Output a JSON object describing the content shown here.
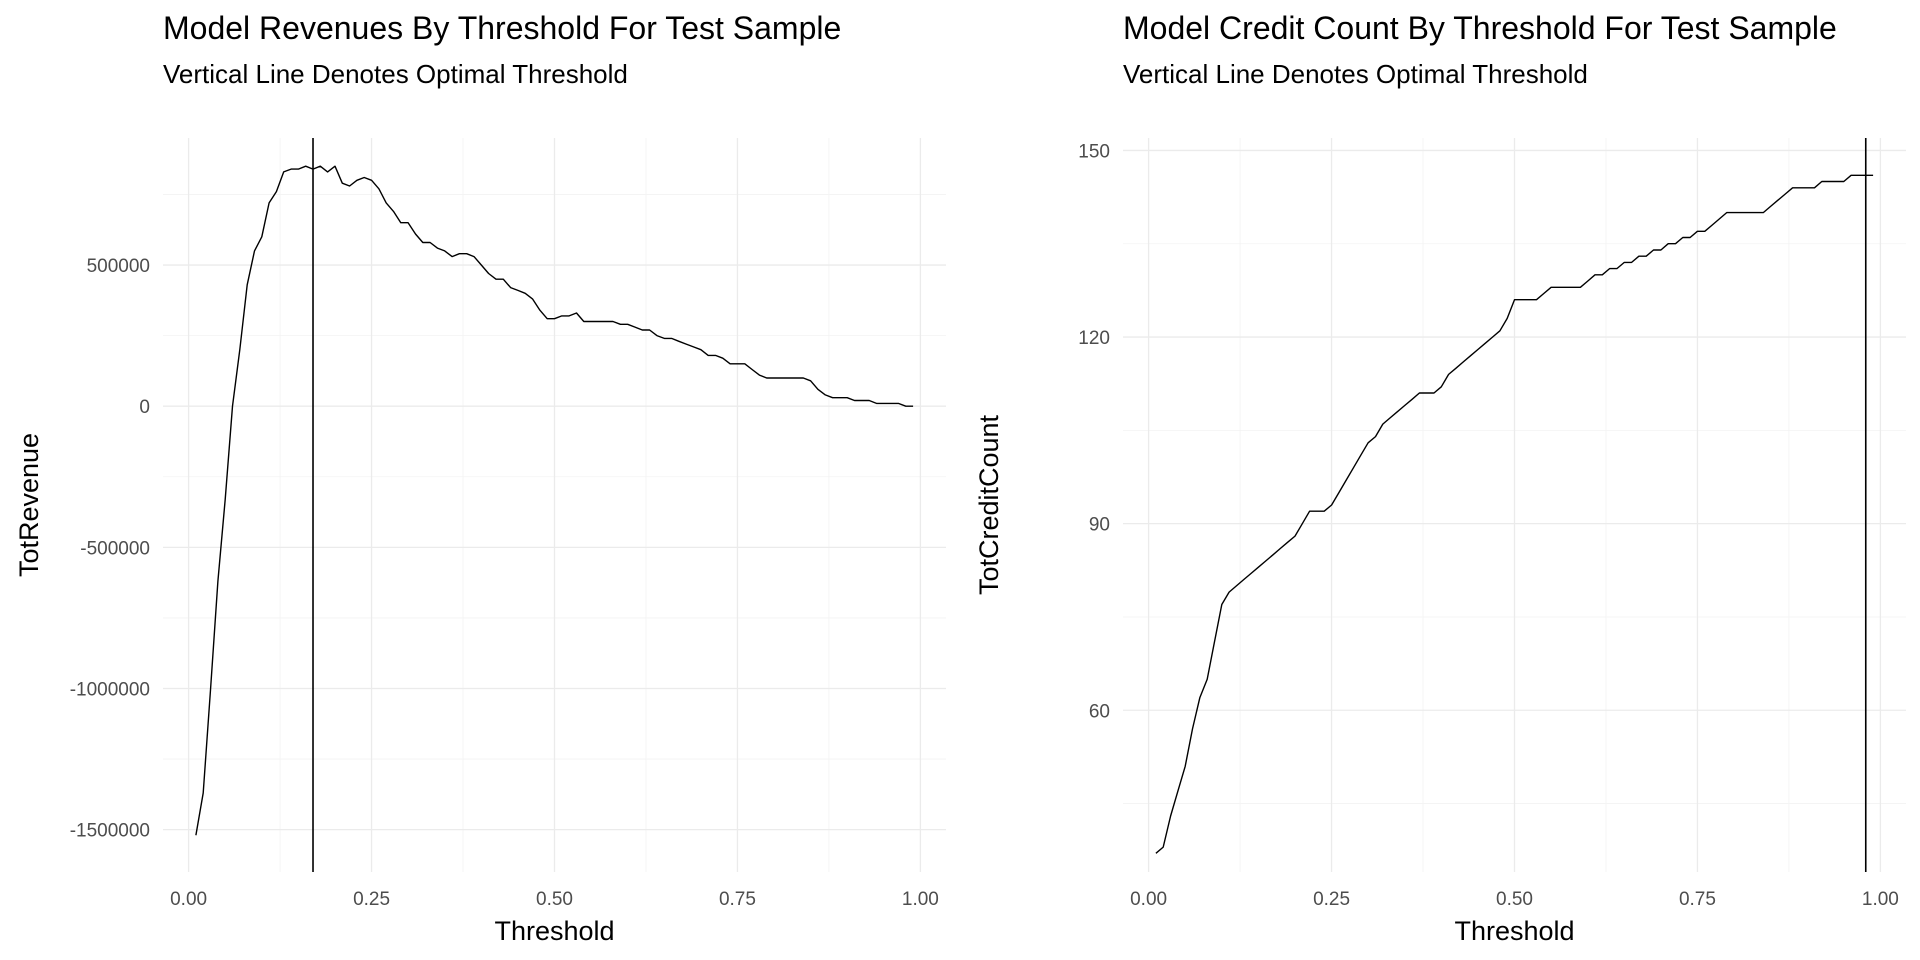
{
  "chart_data": [
    {
      "type": "line",
      "title": "Model Revenues By Threshold For Test Sample",
      "subtitle": "Vertical Line Denotes Optimal Threshold",
      "xlabel": "Threshold",
      "ylabel": "TotRevenue",
      "xlim": [
        -0.035,
        1.035
      ],
      "ylim": [
        -1650000,
        950000
      ],
      "x_ticks": [
        0,
        0.25,
        0.5,
        0.75,
        1
      ],
      "x_tick_labels": [
        "0.00",
        "0.25",
        "0.50",
        "0.75",
        "1.00"
      ],
      "y_ticks": [
        -1500000,
        -1000000,
        -500000,
        0,
        500000
      ],
      "y_tick_labels": [
        "-1500000",
        "-1000000",
        "-500000",
        "0",
        "500000"
      ],
      "grid": true,
      "optimal_threshold": 0.17,
      "series": [
        {
          "x": [
            0.01,
            0.02,
            0.03,
            0.04,
            0.05,
            0.06,
            0.07,
            0.08,
            0.09,
            0.1,
            0.11,
            0.12,
            0.13,
            0.14,
            0.15,
            0.16,
            0.17,
            0.18,
            0.19,
            0.2,
            0.21,
            0.22,
            0.23,
            0.24,
            0.25,
            0.26,
            0.27,
            0.28,
            0.29,
            0.3,
            0.31,
            0.32,
            0.33,
            0.34,
            0.35,
            0.36,
            0.37,
            0.38,
            0.39,
            0.4,
            0.41,
            0.42,
            0.43,
            0.44,
            0.45,
            0.46,
            0.47,
            0.48,
            0.49,
            0.5,
            0.51,
            0.52,
            0.53,
            0.54,
            0.55,
            0.56,
            0.57,
            0.58,
            0.59,
            0.6,
            0.61,
            0.62,
            0.63,
            0.64,
            0.65,
            0.66,
            0.67,
            0.68,
            0.69,
            0.7,
            0.71,
            0.72,
            0.73,
            0.74,
            0.75,
            0.76,
            0.77,
            0.78,
            0.79,
            0.8,
            0.81,
            0.82,
            0.83,
            0.84,
            0.85,
            0.86,
            0.87,
            0.88,
            0.89,
            0.9,
            0.91,
            0.92,
            0.93,
            0.94,
            0.95,
            0.96,
            0.97,
            0.98,
            0.99
          ],
          "values": [
            -1520000,
            -1370000,
            -1000000,
            -620000,
            -330000,
            0,
            200000,
            430000,
            550000,
            600000,
            720000,
            760000,
            830000,
            840000,
            840000,
            850000,
            840000,
            850000,
            830000,
            850000,
            790000,
            780000,
            800000,
            810000,
            800000,
            770000,
            720000,
            690000,
            650000,
            650000,
            610000,
            580000,
            580000,
            560000,
            550000,
            530000,
            540000,
            540000,
            530000,
            500000,
            470000,
            450000,
            450000,
            420000,
            410000,
            400000,
            380000,
            340000,
            310000,
            310000,
            320000,
            320000,
            330000,
            300000,
            300000,
            300000,
            300000,
            300000,
            290000,
            290000,
            280000,
            270000,
            270000,
            250000,
            240000,
            240000,
            230000,
            220000,
            210000,
            200000,
            180000,
            180000,
            170000,
            150000,
            150000,
            150000,
            130000,
            110000,
            100000,
            100000,
            100000,
            100000,
            100000,
            100000,
            90000,
            60000,
            40000,
            30000,
            30000,
            30000,
            20000,
            20000,
            20000,
            10000,
            10000,
            10000,
            10000,
            0,
            0
          ]
        }
      ]
    },
    {
      "type": "line",
      "title": "Model Credit Count By Threshold For Test Sample",
      "subtitle": "Vertical Line Denotes Optimal Threshold",
      "xlabel": "Threshold",
      "ylabel": "TotCreditCount",
      "xlim": [
        -0.035,
        1.035
      ],
      "ylim": [
        34,
        152
      ],
      "x_ticks": [
        0,
        0.25,
        0.5,
        0.75,
        1
      ],
      "x_tick_labels": [
        "0.00",
        "0.25",
        "0.50",
        "0.75",
        "1.00"
      ],
      "y_ticks": [
        60,
        90,
        120,
        150
      ],
      "y_tick_labels": [
        "60",
        "90",
        "120",
        "150"
      ],
      "grid": true,
      "optimal_threshold": 0.98,
      "series": [
        {
          "x": [
            0.01,
            0.02,
            0.03,
            0.04,
            0.05,
            0.06,
            0.07,
            0.08,
            0.09,
            0.1,
            0.11,
            0.12,
            0.13,
            0.14,
            0.15,
            0.16,
            0.17,
            0.18,
            0.19,
            0.2,
            0.21,
            0.22,
            0.23,
            0.24,
            0.25,
            0.26,
            0.27,
            0.28,
            0.29,
            0.3,
            0.31,
            0.32,
            0.33,
            0.34,
            0.35,
            0.36,
            0.37,
            0.38,
            0.39,
            0.4,
            0.41,
            0.42,
            0.43,
            0.44,
            0.45,
            0.46,
            0.47,
            0.48,
            0.49,
            0.5,
            0.51,
            0.52,
            0.53,
            0.54,
            0.55,
            0.56,
            0.57,
            0.58,
            0.59,
            0.6,
            0.61,
            0.62,
            0.63,
            0.64,
            0.65,
            0.66,
            0.67,
            0.68,
            0.69,
            0.7,
            0.71,
            0.72,
            0.73,
            0.74,
            0.75,
            0.76,
            0.77,
            0.78,
            0.79,
            0.8,
            0.81,
            0.82,
            0.83,
            0.84,
            0.85,
            0.86,
            0.87,
            0.88,
            0.89,
            0.9,
            0.91,
            0.92,
            0.93,
            0.94,
            0.95,
            0.96,
            0.97,
            0.98,
            0.99
          ],
          "values": [
            37,
            38,
            43,
            47,
            51,
            57,
            62,
            65,
            71,
            77,
            79,
            80,
            81,
            82,
            83,
            84,
            85,
            86,
            87,
            88,
            90,
            92,
            92,
            92,
            93,
            95,
            97,
            99,
            101,
            103,
            104,
            106,
            107,
            108,
            109,
            110,
            111,
            111,
            111,
            112,
            114,
            115,
            116,
            117,
            118,
            119,
            120,
            121,
            123,
            126,
            126,
            126,
            126,
            127,
            128,
            128,
            128,
            128,
            128,
            129,
            130,
            130,
            131,
            131,
            132,
            132,
            133,
            133,
            134,
            134,
            135,
            135,
            136,
            136,
            137,
            137,
            138,
            139,
            140,
            140,
            140,
            140,
            140,
            140,
            141,
            142,
            143,
            144,
            144,
            144,
            144,
            145,
            145,
            145,
            145,
            146,
            146,
            146,
            146
          ]
        }
      ]
    }
  ]
}
